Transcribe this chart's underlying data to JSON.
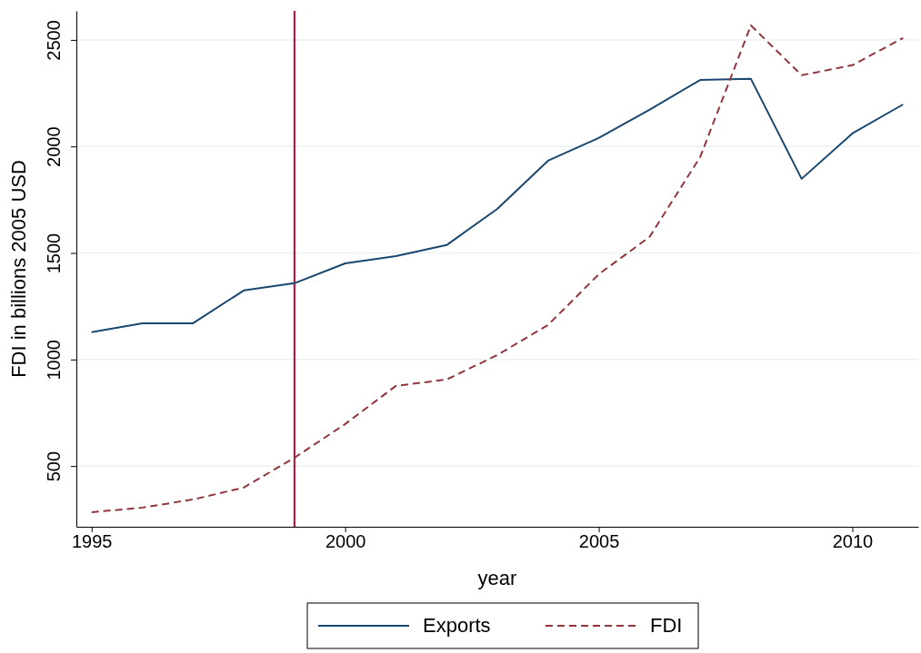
{
  "chart_data": {
    "type": "line",
    "xlabel": "year",
    "ylabel": "FDI in billions 2005 USD",
    "x": [
      1995,
      1996,
      1997,
      1998,
      1999,
      2000,
      2001,
      2002,
      2003,
      2004,
      2005,
      2006,
      2007,
      2008,
      2009,
      2010,
      2011
    ],
    "series": [
      {
        "name": "Exports",
        "color": "#1a476f",
        "line_style": "solid",
        "values": [
          1128,
          1170,
          1170,
          1324,
          1358,
          1451,
          1485,
          1537,
          1707,
          1933,
          2040,
          2172,
          2312,
          2317,
          1848,
          2061,
          2197
        ]
      },
      {
        "name": "FDI",
        "color": "#90353b",
        "line_style": "dashed",
        "values": [
          283,
          305,
          343,
          399,
          539,
          697,
          876,
          906,
          1021,
          1162,
          1400,
          1575,
          1950,
          2568,
          2334,
          2381,
          2509
        ]
      }
    ],
    "xlim": [
      1994.7,
      2011.3
    ],
    "xticks": [
      1995,
      2000,
      2005,
      2010
    ],
    "ylim": [
      215,
      2636
    ],
    "yticks": [
      500,
      1000,
      1500,
      2000,
      2500
    ],
    "grid": "y",
    "legend": "bottom",
    "ref_lines": [
      {
        "axis": "x",
        "value": 1999,
        "color": "#c10534"
      }
    ]
  }
}
